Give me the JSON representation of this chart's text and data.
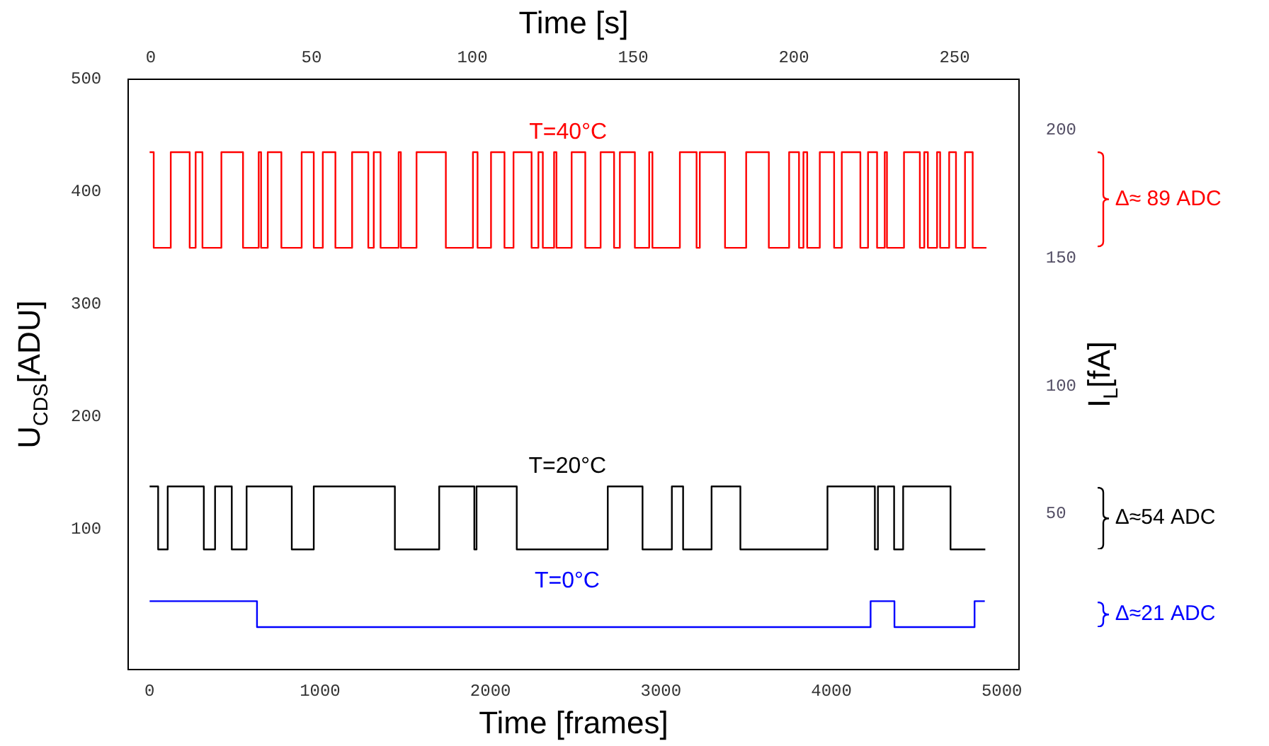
{
  "chart_data": {
    "type": "step",
    "xlabel": "Time [frames]",
    "x2label": "Time [s]",
    "ylabel": "U$_{CDS}$[ADU]",
    "y2label": "I$_{L}$[fA]",
    "xlim": [
      -125,
      5100
    ],
    "xticks": [
      0,
      1000,
      2000,
      3000,
      4000,
      5000
    ],
    "x2lim": [
      -7,
      270
    ],
    "x2ticks": [
      0,
      50,
      100,
      150,
      200,
      250
    ],
    "ylim": [
      -25,
      500
    ],
    "yticks": [
      100,
      200,
      300,
      400,
      500
    ],
    "y2lim": [
      -11,
      220
    ],
    "y2ticks": [
      50,
      100,
      150,
      200
    ],
    "annotations": [
      "Δ≈ 89 ADC",
      "Δ≈54 ADC",
      "Δ≈21 ADC"
    ],
    "series": [
      {
        "name": "T=40°C",
        "color": "#ff0000",
        "x": [
          0,
          24,
          124,
          235,
          270,
          310,
          421,
          548,
          640,
          654,
          693,
          773,
          892,
          963,
          1016,
          1090,
          1188,
          1283,
          1315,
          1355,
          1461,
          1474,
          1566,
          1738,
          1897,
          1924,
          2003,
          2082,
          2135,
          2241,
          2281,
          2307,
          2373,
          2387,
          2476,
          2556,
          2646,
          2725,
          2759,
          2847,
          2931,
          2950,
          3111,
          3209,
          3228,
          3376,
          3500,
          3633,
          3752,
          3810,
          3836,
          3858,
          3932,
          4016,
          4061,
          4170,
          4215,
          4268,
          4313,
          4326,
          4426,
          4519,
          4545,
          4566,
          4620,
          4638,
          4691,
          4731,
          4784,
          4829,
          4910
        ],
        "values": [
          435,
          350,
          435,
          350,
          435,
          350,
          435,
          350,
          435,
          350,
          435,
          350,
          435,
          350,
          435,
          350,
          435,
          350,
          435,
          350,
          435,
          350,
          435,
          350,
          435,
          350,
          435,
          350,
          435,
          350,
          435,
          350,
          435,
          350,
          435,
          350,
          435,
          350,
          435,
          350,
          435,
          350,
          435,
          350,
          435,
          350,
          435,
          350,
          435,
          350,
          435,
          350,
          435,
          350,
          435,
          350,
          435,
          350,
          435,
          350,
          435,
          350,
          435,
          350,
          435,
          350,
          435,
          350,
          435,
          350,
          350
        ]
      },
      {
        "name": "T=20°C",
        "color": "#000000",
        "x": [
          0,
          50,
          106,
          318,
          384,
          482,
          569,
          834,
          963,
          1439,
          1699,
          1905,
          1918,
          2154,
          2688,
          2892,
          3064,
          3130,
          3297,
          3466,
          3977,
          4255,
          4273,
          4368,
          4421,
          4699,
          4903
        ],
        "values": [
          138,
          82,
          138,
          82,
          138,
          82,
          138,
          82,
          138,
          82,
          138,
          82,
          138,
          82,
          138,
          82,
          138,
          82,
          138,
          82,
          138,
          82,
          138,
          82,
          138,
          82,
          82
        ]
      },
      {
        "name": "T=0°C",
        "color": "#0000ff",
        "x": [
          0,
          630,
          4230,
          4370,
          4840,
          4900
        ],
        "values": [
          36,
          13,
          36,
          13,
          36,
          36
        ]
      }
    ]
  }
}
